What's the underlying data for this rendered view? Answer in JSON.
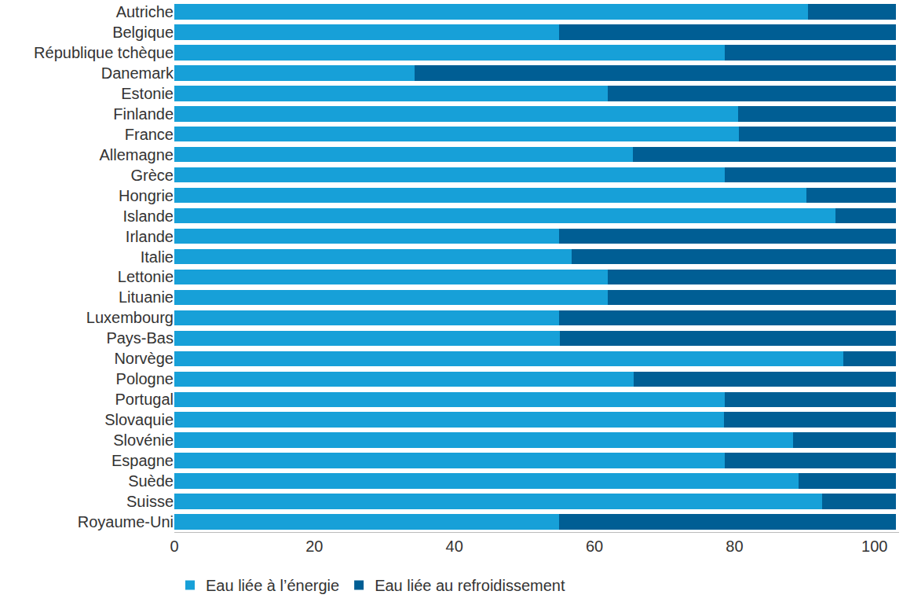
{
  "chart_data": {
    "type": "bar",
    "orientation": "horizontal",
    "stacked": true,
    "categories": [
      "Autriche",
      "Belgique",
      "République tchèque",
      "Danemark",
      "Estonie",
      "Finlande",
      "France",
      "Allemagne",
      "Grèce",
      "Hongrie",
      "Islande",
      "Irlande",
      "Italie",
      "Lettonie",
      "Lituanie",
      "Luxembourg",
      "Pays-Bas",
      "Norvège",
      "Pologne",
      "Portugal",
      "Slovaquie",
      "Slovénie",
      "Espagne",
      "Suède",
      "Suisse",
      "Royaume-Uni"
    ],
    "series": [
      {
        "name": "Eau liée à l’énergie",
        "color": "#17a0d8",
        "values": [
          90.5,
          54.9,
          78.6,
          34.3,
          61.9,
          80.5,
          80.6,
          65.5,
          78.6,
          90.3,
          94.4,
          54.9,
          56.7,
          61.9,
          61.9,
          54.9,
          55.1,
          95.5,
          65.6,
          78.6,
          78.5,
          88.4,
          78.6,
          89.2,
          92.5,
          55.0
        ]
      },
      {
        "name": "Eau liée au refroidissement",
        "color": "#005e94",
        "values": [
          12.5,
          48.1,
          24.4,
          68.7,
          41.1,
          22.5,
          22.4,
          37.5,
          24.4,
          12.7,
          8.6,
          48.1,
          46.3,
          41.1,
          41.1,
          48.1,
          47.9,
          7.5,
          37.4,
          24.4,
          24.5,
          14.6,
          24.4,
          13.8,
          10.5,
          48.0
        ]
      }
    ],
    "xlim": [
      0,
      103.5
    ],
    "xticks": [
      0,
      20,
      40,
      60,
      80,
      100
    ],
    "grid": false,
    "legend": "bottom left"
  }
}
